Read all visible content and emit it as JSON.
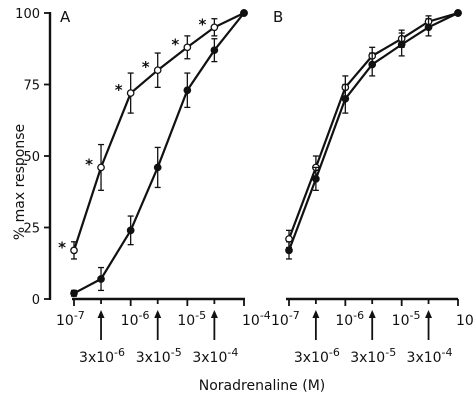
{
  "chart_data": [
    {
      "panel": "A",
      "type": "line",
      "x_scale": "log",
      "x": [
        1e-07,
        3e-07,
        1e-06,
        3e-06,
        1e-05,
        3e-05,
        0.0001
      ],
      "xlim": [
        1e-07,
        0.0001
      ],
      "ylim": [
        0,
        100
      ],
      "ylabel": "% max response",
      "series": [
        {
          "marker": "open",
          "values": [
            17,
            46,
            72,
            80,
            88,
            95,
            100
          ],
          "err": [
            3,
            8,
            7,
            6,
            4,
            3,
            0
          ],
          "significant": [
            true,
            true,
            true,
            true,
            true,
            true,
            false
          ]
        },
        {
          "marker": "filled",
          "values": [
            2,
            7,
            24,
            46,
            73,
            87,
            100
          ],
          "err": [
            1,
            4,
            5,
            7,
            6,
            4,
            0
          ]
        }
      ]
    },
    {
      "panel": "B",
      "type": "line",
      "x_scale": "log",
      "x": [
        1e-07,
        3e-07,
        1e-06,
        3e-06,
        1e-05,
        3e-05,
        0.0001
      ],
      "xlim": [
        1e-07,
        0.0001
      ],
      "ylim": [
        0,
        100
      ],
      "series": [
        {
          "marker": "open",
          "values": [
            21,
            46,
            74,
            85,
            91,
            97,
            100
          ],
          "err": [
            3,
            4,
            4,
            3,
            3,
            2,
            0
          ]
        },
        {
          "marker": "filled",
          "values": [
            17,
            42,
            70,
            82,
            89,
            95,
            100
          ],
          "err": [
            3,
            4,
            5,
            4,
            4,
            3,
            0
          ]
        }
      ]
    }
  ],
  "labels": {
    "panel_a": "A",
    "panel_b": "B",
    "ylabel": "% max response",
    "xlabel": "Noradrenaline (M)",
    "yticks": [
      "0",
      "25",
      "50",
      "75",
      "100"
    ],
    "xticks_main": [
      "10",
      "-7",
      "10",
      "-6",
      "10",
      "-5",
      "10",
      "-4"
    ],
    "xticks_minor": [
      "3x10",
      "-6",
      "3x10",
      "-5",
      "3x10",
      "-4"
    ],
    "sig_marker": "*"
  }
}
